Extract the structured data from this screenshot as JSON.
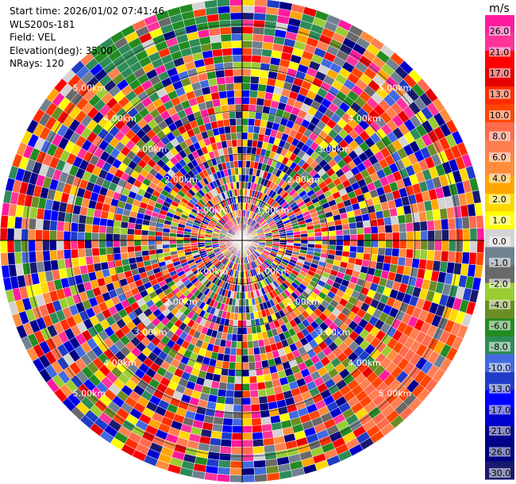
{
  "info": {
    "start_time": "Start time: 2026/01/02 07:41:46",
    "instrument": "WLS200s-181",
    "field": "Field: VEL",
    "elevation": "Elevation(deg): 35.00",
    "nrays": "NRays: 120"
  },
  "chart_data": {
    "type": "heatmap",
    "projection": "polar",
    "field": "VEL",
    "nrays": 120,
    "range_rings": [
      "1.00km",
      "2.00km",
      "3.00km",
      "4.00km",
      "5.00km"
    ],
    "colorbar": {
      "unit": "m/s",
      "ticks": [
        "26.0",
        "21.0",
        "17.0",
        "13.0",
        "10.0",
        "8.0",
        "6.0",
        "4.0",
        "2.0",
        "1.0",
        "0.0",
        "-1.0",
        "-2.0",
        "-4.0",
        "-6.0",
        "-8.0",
        "-10.0",
        "-13.0",
        "-17.0",
        "-21.0",
        "-26.0",
        "-30.0"
      ],
      "colors": [
        "#ff1a9e",
        "#ff3399",
        "#ff0000",
        "#e60000",
        "#ff2d00",
        "#ff4500",
        "#ff6a4d",
        "#ff7f50",
        "#ff8c3c",
        "#ffa500",
        "#ffd700",
        "#ffff00",
        "#d3d3d3",
        "#708090",
        "#696969",
        "#9acd32",
        "#6b8e23",
        "#228b22",
        "#2e8b57",
        "#4169e1",
        "#1e3cc8",
        "#0000ff",
        "#0000cd",
        "#00008b",
        "#000080",
        "#191970"
      ]
    }
  }
}
